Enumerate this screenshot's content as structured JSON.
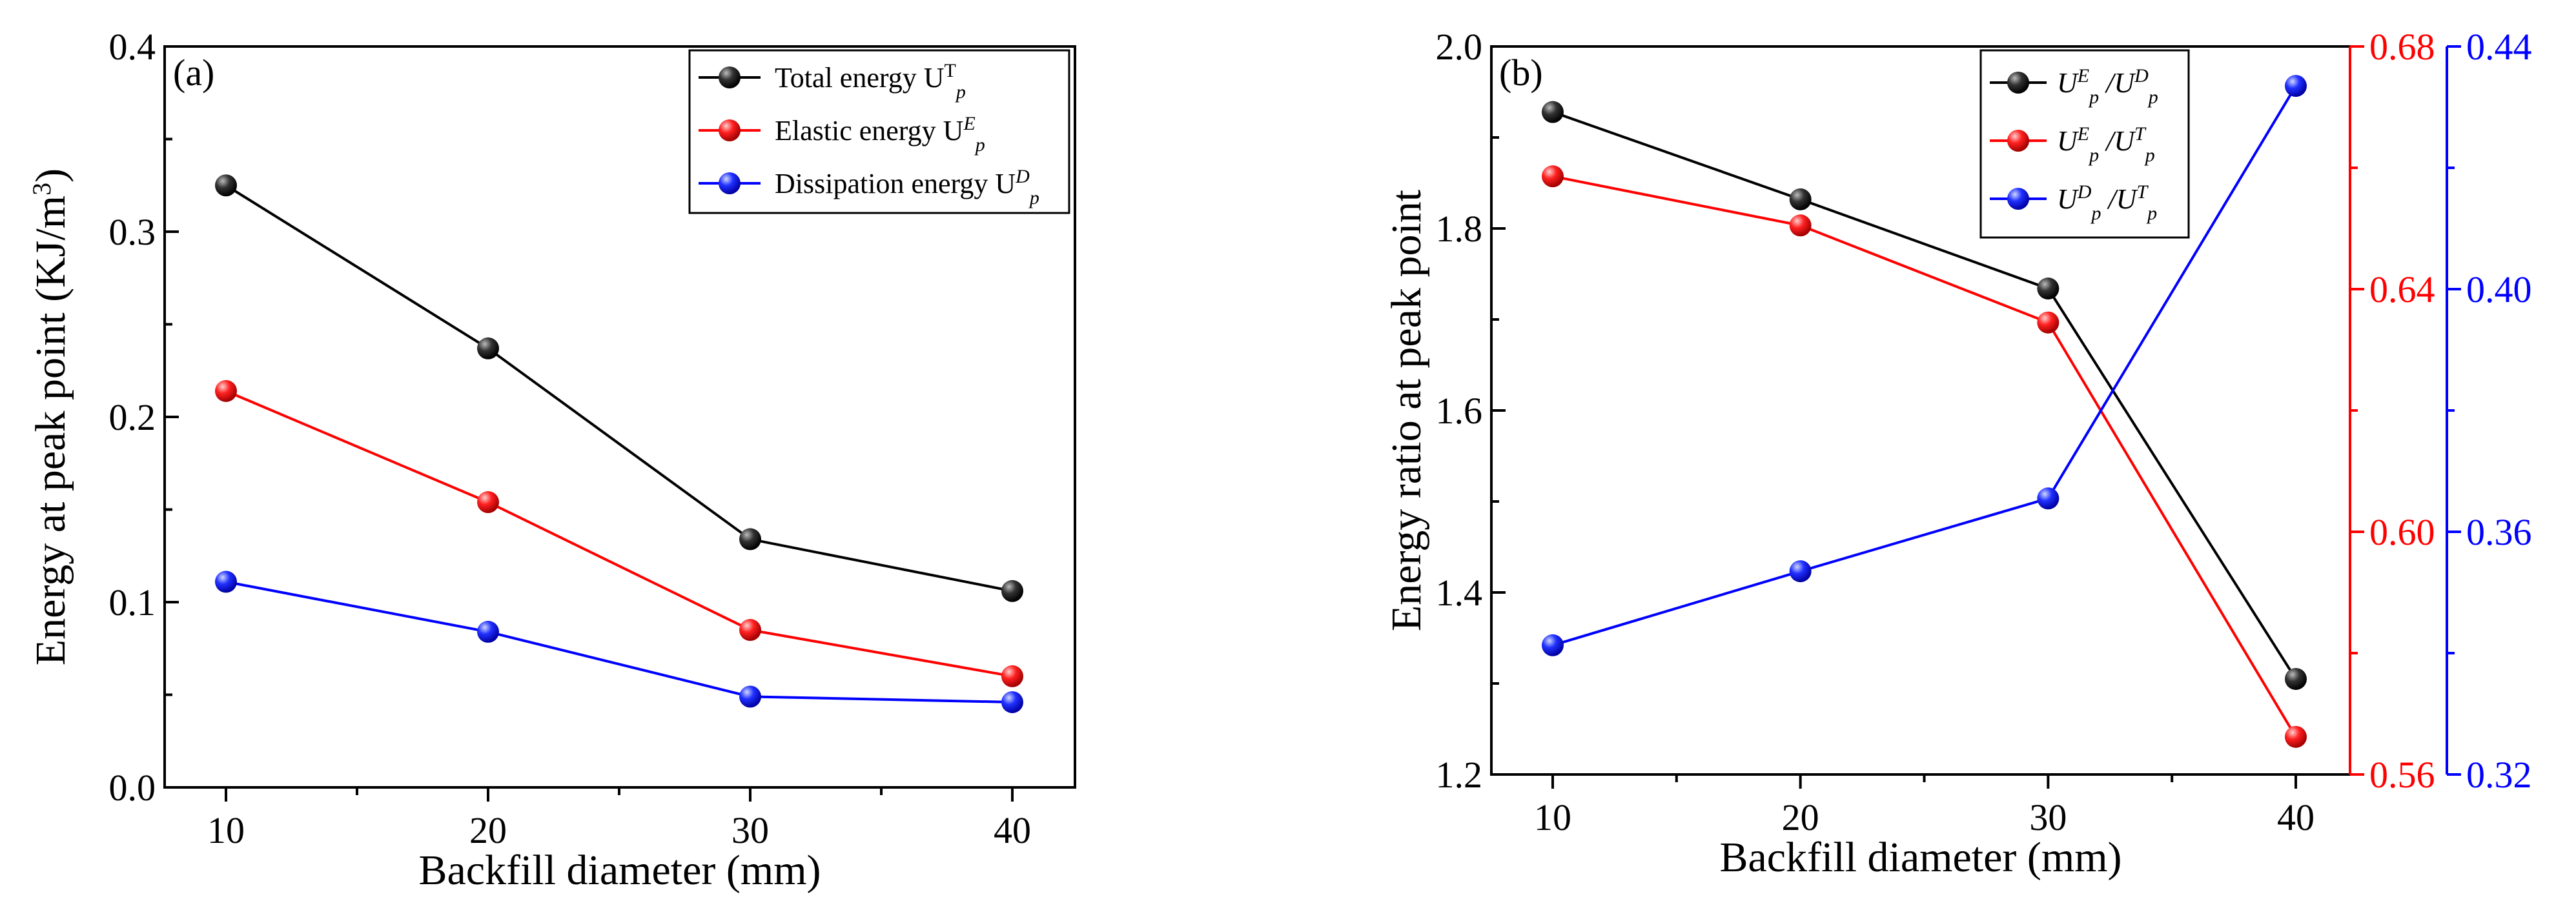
{
  "chart_data": [
    {
      "type": "line",
      "panel_label": "(a)",
      "categories": [
        10,
        20,
        30,
        40
      ],
      "xlabel": "Backfill diameter (mm)",
      "ylabel": "Energy at peak point (KJ/m",
      "ylabel_sup": "3",
      "ylabel_end": ")",
      "ylim": [
        0.0,
        0.4
      ],
      "yticks": [
        "0.0",
        "0.1",
        "0.2",
        "0.3",
        "0.4"
      ],
      "xticks": [
        "10",
        "20",
        "30",
        "40"
      ],
      "legend_position": "top-right",
      "series": [
        {
          "name": "Total energy U",
          "name_sup": "T",
          "name_sub": "p",
          "color": "#000000",
          "values": [
            0.325,
            0.237,
            0.134,
            0.106
          ]
        },
        {
          "name": "Elastic energy U",
          "name_sup": "E",
          "name_sub": "p",
          "color": "#ff0000",
          "values": [
            0.214,
            0.154,
            0.085,
            0.06
          ]
        },
        {
          "name": "Dissipation energy U",
          "name_sup": "D",
          "name_sub": "p",
          "color": "#0000ff",
          "values": [
            0.111,
            0.084,
            0.049,
            0.046
          ]
        }
      ]
    },
    {
      "type": "line",
      "panel_label": "(b)",
      "categories": [
        10,
        20,
        30,
        40
      ],
      "xlabel": "Backfill diameter (mm)",
      "ylabel": "Energy ratio at peak point",
      "ylim": [
        1.2,
        2.0
      ],
      "yticks": [
        "1.2",
        "1.4",
        "1.6",
        "1.8",
        "2.0"
      ],
      "y2lim": [
        0.56,
        0.68
      ],
      "y2ticks": [
        "0.56",
        "0.60",
        "0.64",
        "0.68"
      ],
      "y3lim": [
        0.32,
        0.44
      ],
      "y3ticks": [
        "0.32",
        "0.36",
        "0.40",
        "0.44"
      ],
      "xticks": [
        "10",
        "20",
        "30",
        "40"
      ],
      "legend_position": "top-right",
      "series": [
        {
          "name_top": "E",
          "name_bot": "D",
          "axis": "left",
          "color": "#000000",
          "values": [
            1.928,
            1.832,
            1.734,
            1.305
          ]
        },
        {
          "name_top": "E",
          "name_bot": "T",
          "axis": "right-red",
          "color": "#ff0000",
          "values": [
            0.6586,
            0.6505,
            0.6345,
            0.5662
          ]
        },
        {
          "name_top": "D",
          "name_bot": "T",
          "axis": "right-blue",
          "color": "#0000ff",
          "values": [
            0.3413,
            0.3535,
            0.3655,
            0.4335
          ]
        }
      ]
    }
  ]
}
